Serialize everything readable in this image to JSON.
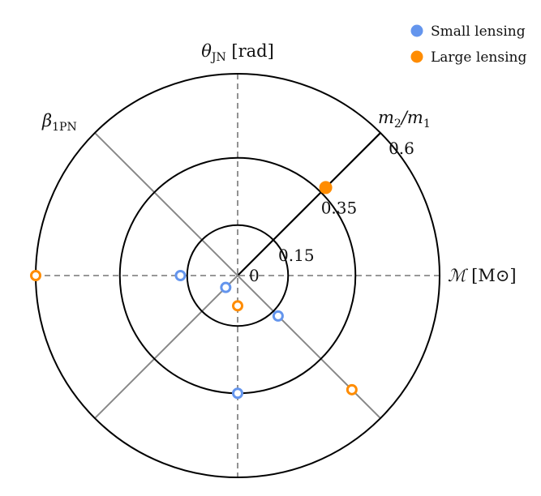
{
  "chart_data": {
    "type": "radar",
    "title": "",
    "axes": [
      {
        "name": "m2_over_m1",
        "label": "m₂/m₁",
        "angle_deg": 45,
        "solid": true
      },
      {
        "name": "theta_jn",
        "label": "θ",
        "sub": "JN",
        "unit": " [rad]",
        "angle_deg": 90,
        "solid": false
      },
      {
        "name": "beta_1pn",
        "label": "β",
        "sub": "1PN",
        "unit": "",
        "angle_deg": 135,
        "solid": false
      },
      {
        "name": "chirp_mass",
        "label": "ℳ",
        "sub": "",
        "unit": " [M⊙]",
        "angle_deg": 0,
        "solid": false
      }
    ],
    "rings": [
      0.15,
      0.35,
      0.6
    ],
    "ring_labels": [
      "0.15",
      "0.35",
      "0.6"
    ],
    "origin_label": "0",
    "r_max": 0.6,
    "series": [
      {
        "name": "Small lensing",
        "color": "#6495ED",
        "points": [
          {
            "angle_deg": 180,
            "r": 0.17
          },
          {
            "angle_deg": 225,
            "r": 0.05
          },
          {
            "angle_deg": 315,
            "r": 0.17
          },
          {
            "angle_deg": 270,
            "r": 0.35
          }
        ]
      },
      {
        "name": "Large lensing",
        "color": "#FF8C00",
        "points": [
          {
            "angle_deg": 180,
            "r": 0.6
          },
          {
            "angle_deg": 270,
            "r": 0.09
          },
          {
            "angle_deg": 315,
            "r": 0.48
          }
        ]
      }
    ],
    "highlight": {
      "axis": "m2_over_m1",
      "r": 0.37,
      "color": "#FF8C00",
      "filled": true
    },
    "legend": {
      "position": "top-right",
      "entries": [
        "Small lensing",
        "Large lensing"
      ]
    }
  }
}
